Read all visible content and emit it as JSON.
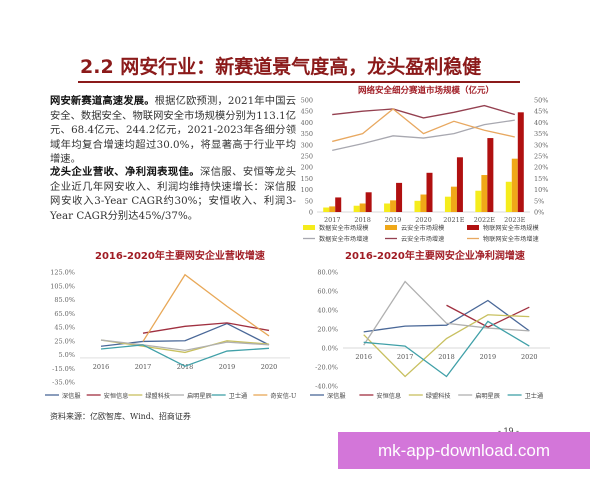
{
  "title": "2.2 网安行业：新赛道景气度高，龙头盈利稳健",
  "para1": {
    "bold": "网安新赛道高速发展。",
    "text": "根据亿欧预测，2021年中国云安全、数据安全、物联网安全市场规模分别为113.1亿元、68.4亿元、244.2亿元，2021-2023年各细分领域年均复合增速均超过30.0%，将显著高于行业平均增速。"
  },
  "para2": {
    "bold": "龙头企业营收、净利润表现佳。",
    "text": "深信服、安恒等龙头企业近几年网安收入、利润均维持快速增长：深信服网安收入3-Year CAGR约30%；安恒收入、利润3-Year CAGR分别达45%/37%。"
  },
  "source": "资料来源：亿欧智库、Wind、招商证券",
  "page_number": "- 19 -",
  "watermark": "mk-app-download.com",
  "chart_data": [
    {
      "type": "bar",
      "title": "网络安全细分赛道市场规模（亿元）",
      "categories": [
        "2017",
        "2018",
        "2019",
        "2020",
        "2021E",
        "2022E",
        "2023E"
      ],
      "ylim": [
        0,
        500
      ],
      "yticks": [
        "0",
        "50",
        "100",
        "150",
        "200",
        "250",
        "300",
        "350",
        "400",
        "450",
        "500"
      ],
      "y2lim": [
        0,
        50
      ],
      "y2ticks": [
        "0%",
        "5%",
        "10%",
        "15%",
        "20%",
        "25%",
        "30%",
        "35%",
        "40%",
        "45%",
        "50%"
      ],
      "series": [
        {
          "name": "数据安全市场规模",
          "kind": "bar",
          "color": "#f5ec1c",
          "values": [
            20,
            28,
            38,
            50,
            68.4,
            95,
            135
          ]
        },
        {
          "name": "云安全市场规模",
          "kind": "bar",
          "color": "#f0a818",
          "values": [
            25,
            38,
            52,
            78,
            113.1,
            165,
            238
          ]
        },
        {
          "name": "物联网安全市场规模",
          "kind": "bar",
          "color": "#b01010",
          "values": [
            65,
            88,
            130,
            175,
            244.2,
            330,
            445
          ]
        },
        {
          "name": "数据安全市场增速",
          "kind": "line",
          "axis": "right",
          "color": "#a8a8b0",
          "values": [
            27.5,
            30.5,
            34,
            33,
            35,
            39,
            41
          ]
        },
        {
          "name": "云安全市场增速",
          "kind": "line",
          "axis": "right",
          "color": "#944050",
          "values": [
            43.5,
            45,
            46,
            42,
            44.5,
            47.5,
            43.5
          ]
        },
        {
          "name": "物联网安全市场增速",
          "kind": "line",
          "axis": "right",
          "color": "#e8a860",
          "values": [
            31.5,
            35,
            46,
            35,
            40.5,
            36.5,
            33.5
          ]
        }
      ]
    },
    {
      "type": "line",
      "title": "2016-2020年主要网安企业营收增速",
      "categories": [
        "2016",
        "2017",
        "2018",
        "2019",
        "2020"
      ],
      "ylim": [
        -35,
        125
      ],
      "yticks": [
        "125.0%",
        "105.0%",
        "85.0%",
        "65.0%",
        "45.0%",
        "25.0%",
        "5.0%",
        "-15.0%",
        "-35.0%"
      ],
      "series": [
        {
          "name": "深信服",
          "color": "#4a6898",
          "values": [
            17,
            24,
            25,
            50,
            19
          ]
        },
        {
          "name": "安恒信息",
          "color": "#a03040",
          "values": [
            null,
            36,
            46,
            51,
            40
          ]
        },
        {
          "name": "绿盟科技",
          "color": "#c8c060",
          "values": [
            26,
            17,
            8,
            25,
            20
          ]
        },
        {
          "name": "启明星辰",
          "color": "#b0b0b0",
          "values": [
            26,
            19,
            11,
            23,
            19
          ]
        },
        {
          "name": "卫士通",
          "color": "#40a0a8",
          "values": [
            13,
            19,
            -12,
            10,
            14
          ]
        },
        {
          "name": "奇安信-U",
          "color": "#e8a858",
          "values": [
            null,
            24,
            121,
            75,
            32
          ]
        }
      ]
    },
    {
      "type": "line",
      "title": "2016-2020年主要网安企业净利润增速",
      "categories": [
        "2016",
        "2017",
        "2018",
        "2019",
        "2020"
      ],
      "ylim": [
        -40,
        80
      ],
      "yticks": [
        "80.0%",
        "60.0%",
        "40.0%",
        "20.0%",
        "0.0%",
        "-20.0%",
        "-40.0%"
      ],
      "series": [
        {
          "name": "深信服",
          "color": "#4a6898",
          "values": [
            17,
            23,
            24,
            50,
            18
          ]
        },
        {
          "name": "安恒信息",
          "color": "#a03040",
          "values": [
            null,
            null,
            45,
            22,
            43
          ]
        },
        {
          "name": "绿盟科技",
          "color": "#c8c060",
          "values": [
            14,
            -30,
            10,
            35,
            33
          ]
        },
        {
          "name": "启明星辰",
          "color": "#b0b0b0",
          "values": [
            3,
            70,
            26,
            21,
            18
          ]
        },
        {
          "name": "卫士通",
          "color": "#40a0a8",
          "values": [
            6,
            2,
            -30,
            28,
            2
          ]
        }
      ]
    }
  ]
}
